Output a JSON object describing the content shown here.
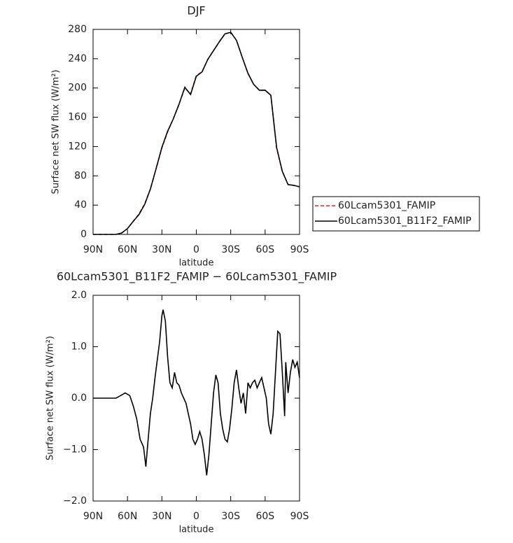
{
  "chart_data": [
    {
      "type": "line",
      "title": "DJF",
      "xlabel": "latitude",
      "ylabel": "Surface net SW flux (W/m²)",
      "x": [
        90,
        85,
        80,
        75,
        70,
        65,
        60,
        55,
        50,
        45,
        40,
        35,
        30,
        25,
        20,
        15,
        10,
        5,
        0,
        -5,
        -10,
        -15,
        -20,
        -25,
        -30,
        -35,
        -40,
        -45,
        -50,
        -55,
        -60,
        -65,
        -70,
        -75,
        -80,
        -85,
        -90
      ],
      "series": [
        {
          "name": "60Lcam5301_FAMIP",
          "color": "#e8242a",
          "dash": true,
          "values": [
            0,
            0,
            0,
            0,
            0,
            2,
            8,
            18,
            28,
            42,
            62,
            90,
            118,
            140,
            158,
            178,
            200,
            192,
            217,
            222,
            239,
            251,
            263,
            274,
            276,
            265,
            242,
            220,
            205,
            197,
            197,
            190,
            118,
            86,
            68,
            67,
            65
          ]
        },
        {
          "name": "60Lcam5301_B11F2_FAMIP",
          "color": "#000000",
          "dash": false,
          "values": [
            0,
            0,
            0,
            0,
            0,
            2,
            8,
            18,
            27,
            41,
            62,
            90,
            119,
            141,
            158,
            178,
            201,
            191,
            216,
            222,
            239,
            251,
            263,
            274,
            276,
            265,
            242,
            220,
            205,
            197,
            197,
            190,
            119,
            86,
            68,
            67,
            65
          ]
        }
      ],
      "xlim": [
        90,
        -90
      ],
      "xticks": [
        {
          "value": 90,
          "label": "90N"
        },
        {
          "value": 60,
          "label": "60N"
        },
        {
          "value": 30,
          "label": "30N"
        },
        0,
        {
          "value": -30,
          "label": "30S"
        },
        {
          "value": -60,
          "label": "60S"
        },
        {
          "value": -90,
          "label": "90S"
        }
      ],
      "ylim": [
        0,
        280
      ],
      "yticks": [
        0,
        40,
        80,
        120,
        160,
        200,
        240,
        280
      ],
      "legend": "right"
    },
    {
      "type": "line",
      "title": "60Lcam5301_B11F2_FAMIP − 60Lcam5301_FAMIP",
      "xlabel": "latitude",
      "ylabel": "Surface net SW flux (W/m²)",
      "x": [
        90,
        80,
        70,
        66,
        62,
        58,
        55,
        52,
        49,
        46,
        44,
        42,
        40,
        38,
        36,
        34,
        32,
        30,
        29,
        27,
        25,
        23,
        21,
        19,
        17,
        15,
        13,
        11,
        9,
        7,
        5,
        3,
        1,
        -1,
        -3,
        -5,
        -7,
        -9,
        -11,
        -13,
        -15,
        -17,
        -19,
        -21,
        -23,
        -25,
        -27,
        -29,
        -31,
        -33,
        -35,
        -37,
        -39,
        -41,
        -43,
        -45,
        -47,
        -49,
        -51,
        -53,
        -55,
        -57,
        -59,
        -61,
        -63,
        -65,
        -67,
        -69,
        -71,
        -73,
        -75,
        -77,
        -78,
        -80,
        -82,
        -84,
        -86,
        -88,
        -90
      ],
      "series": [
        {
          "color": "#000000",
          "dash": false,
          "values": [
            0,
            0,
            0,
            0.05,
            0.1,
            0.05,
            -0.15,
            -0.4,
            -0.8,
            -0.95,
            -1.33,
            -0.8,
            -0.3,
            0,
            0.4,
            0.75,
            1.1,
            1.6,
            1.72,
            1.5,
            0.8,
            0.3,
            0.2,
            0.5,
            0.3,
            0.25,
            0.1,
            0,
            -0.1,
            -0.3,
            -0.5,
            -0.8,
            -0.9,
            -0.8,
            -0.65,
            -0.8,
            -1.1,
            -1.5,
            -1.1,
            -0.5,
            0.1,
            0.45,
            0.3,
            -0.3,
            -0.6,
            -0.8,
            -0.85,
            -0.6,
            -0.2,
            0.3,
            0.55,
            0.2,
            -0.1,
            0.1,
            -0.3,
            0.3,
            0.2,
            0.3,
            0.35,
            0.2,
            0.3,
            0.4,
            0.2,
            0,
            -0.5,
            -0.7,
            -0.3,
            0.5,
            1.3,
            1.25,
            0.5,
            -0.35,
            0.7,
            0.1,
            0.5,
            0.75,
            0.6,
            0.7,
            0.4
          ]
        }
      ],
      "xlim": [
        90,
        -90
      ],
      "xticks": [
        {
          "value": 90,
          "label": "90N"
        },
        {
          "value": 60,
          "label": "60N"
        },
        {
          "value": 30,
          "label": "30N"
        },
        0,
        {
          "value": -30,
          "label": "30S"
        },
        {
          "value": -60,
          "label": "60S"
        },
        {
          "value": -90,
          "label": "90S"
        }
      ],
      "ylim": [
        -2,
        2
      ],
      "yticks": [
        {
          "value": -2,
          "label": "−2.0"
        },
        {
          "value": -1,
          "label": "−1.0"
        },
        {
          "value": 0,
          "label": "0.0"
        },
        {
          "value": 1,
          "label": "1.0"
        },
        {
          "value": 2,
          "label": "2.0"
        }
      ]
    }
  ]
}
